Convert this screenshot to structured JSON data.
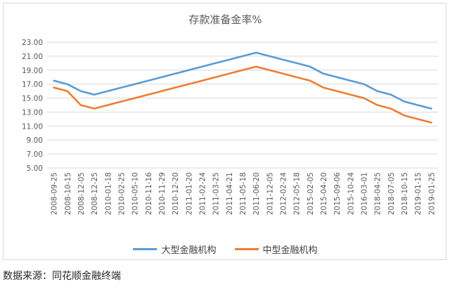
{
  "chart_data": {
    "type": "line",
    "title": "存款准备金率%",
    "x": [
      "2008-09-25",
      "2008-10-15",
      "2008-12-05",
      "2008-12-25",
      "2010-01-18",
      "2010-02-25",
      "2010-05-10",
      "2010-11-16",
      "2010-11-29",
      "2010-12-20",
      "2011-01-20",
      "2011-02-24",
      "2011-03-25",
      "2011-04-21",
      "2011-05-18",
      "2011-06-20",
      "2011-12-05",
      "2012-02-24",
      "2012-05-18",
      "2015-02-05",
      "2015-04-20",
      "2015-09-06",
      "2015-10-24",
      "2016-03-01",
      "2018-04-25",
      "2018-07-05",
      "2018-10-15",
      "2019-01-15",
      "2019-01-25"
    ],
    "series": [
      {
        "name": "大型金融机构",
        "color": "#5b9bd5",
        "values": [
          17.5,
          17,
          16,
          15.5,
          16,
          16.5,
          17,
          17.5,
          18,
          18.5,
          19,
          19.5,
          20,
          20.5,
          21,
          21.5,
          21,
          20.5,
          20,
          19.5,
          18.5,
          18,
          17.5,
          17,
          16,
          15.5,
          14.5,
          14,
          13.5
        ]
      },
      {
        "name": "中型金融机构",
        "color": "#ed7d31",
        "values": [
          16.5,
          16,
          14,
          13.5,
          14,
          14.5,
          15,
          15.5,
          16,
          16.5,
          17,
          17.5,
          18,
          18.5,
          19,
          19.5,
          19,
          18.5,
          18,
          17.5,
          16.5,
          16,
          15.5,
          15,
          14,
          13.5,
          12.5,
          12,
          11.5
        ]
      }
    ],
    "yticks": [
      "5.00",
      "7.00",
      "9.00",
      "11.00",
      "13.00",
      "15.00",
      "17.00",
      "19.00",
      "21.00",
      "23.00"
    ],
    "ylim": [
      5,
      23
    ],
    "grid": true,
    "legend_position": "bottom"
  },
  "source_note": "数据来源：同花顺金融终端"
}
